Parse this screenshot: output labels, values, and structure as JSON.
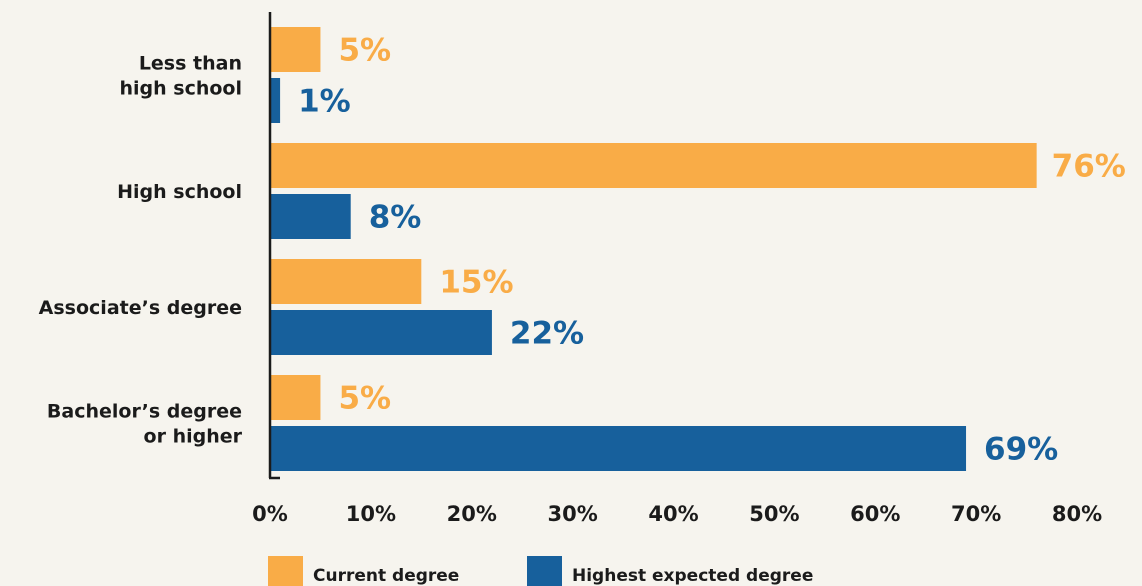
{
  "chart_data": {
    "type": "bar",
    "orientation": "horizontal",
    "categories": [
      [
        "Less than",
        "high school"
      ],
      [
        "High school"
      ],
      [
        "Associate’s degree"
      ],
      [
        "Bachelor’s degree",
        "or higher"
      ]
    ],
    "series": [
      {
        "name": "Current degree",
        "values": [
          5,
          76,
          15,
          5
        ],
        "value_labels": [
          "5%",
          "76%",
          "15%",
          "5%"
        ],
        "color": "#f9ac47"
      },
      {
        "name": "Highest expected degree",
        "values": [
          1,
          8,
          22,
          69
        ],
        "value_labels": [
          "1%",
          "8%",
          "22%",
          "69%"
        ],
        "color": "#17609c"
      }
    ],
    "x_ticks": [
      "0%",
      "10%",
      "20%",
      "30%",
      "40%",
      "50%",
      "60%",
      "70%",
      "80%"
    ],
    "xlim": [
      0,
      80
    ],
    "grid": false,
    "legend": "bottom",
    "title": "",
    "xlabel": "",
    "ylabel": ""
  }
}
